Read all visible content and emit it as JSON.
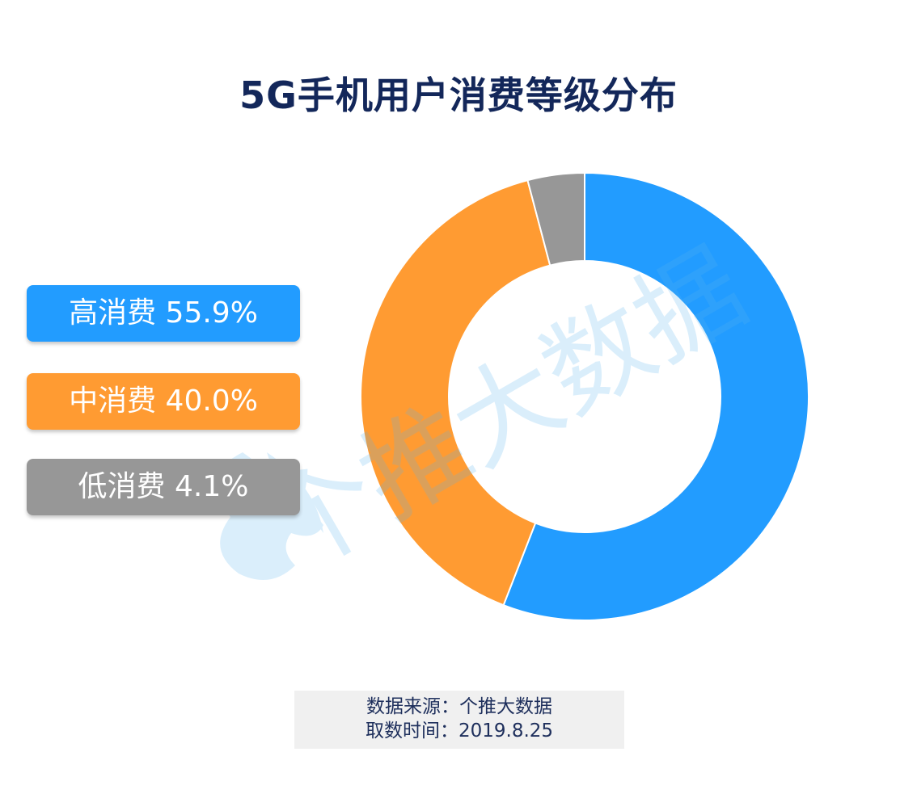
{
  "chart_data": {
    "type": "pie",
    "title": "5G手机用户消费等级分布",
    "categories": [
      "高消费",
      "中消费",
      "低消费"
    ],
    "values": [
      55.9,
      40.0,
      4.1
    ],
    "value_labels": [
      "55.9%",
      "40.0%",
      "4.1%"
    ],
    "colors": [
      "#229cff",
      "#ff9b32",
      "#979797"
    ],
    "donut": true,
    "legend_position": "left"
  },
  "watermark": "个推大数据",
  "source": {
    "line1": "数据来源：个推大数据",
    "line2": "取数时间：2019.8.25"
  }
}
